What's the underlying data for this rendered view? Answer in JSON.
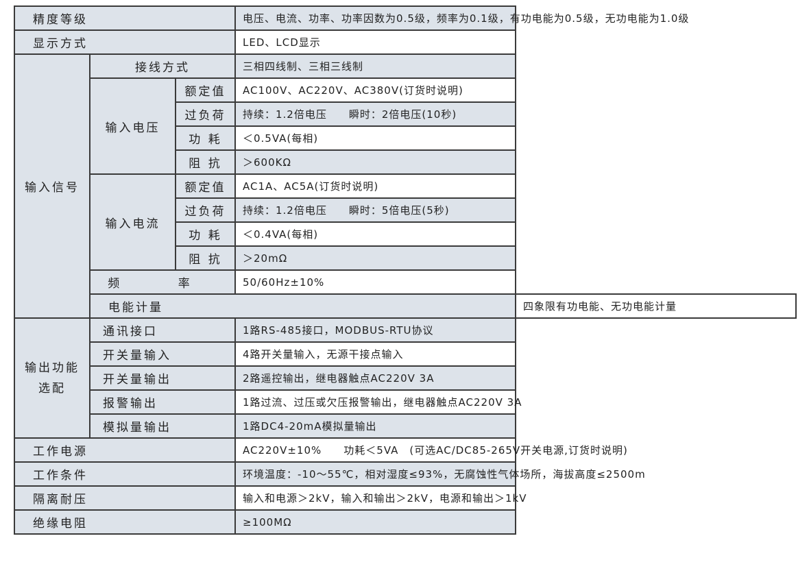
{
  "rows": {
    "accuracy": {
      "label": "精度等级",
      "value": "电压、电流、功率、功率因数为0.5级，频率为0.1级，有功电能为0.5级，无功电能为1.0级"
    },
    "display": {
      "label": "显示方式",
      "value": "LED、LCD显示"
    },
    "input_signal": {
      "label": "输入信号",
      "wiring": {
        "label": "接线方式",
        "value": "三相四线制、三相三线制"
      },
      "voltage": {
        "label": "输入电压",
        "rated": {
          "label": "额定值",
          "value": "AC100V、AC220V、AC380V(订货时说明)"
        },
        "overload": {
          "label": "过负荷",
          "value": "持续：1.2倍电压　　瞬时：2倍电压(10秒)"
        },
        "power": {
          "label": "功 耗",
          "value": "＜0.5VA(每相)"
        },
        "impedance": {
          "label": "阻 抗",
          "value": "＞600KΩ"
        }
      },
      "current": {
        "label": "输入电流",
        "rated": {
          "label": "额定值",
          "value": "AC1A、AC5A(订货时说明)"
        },
        "overload": {
          "label": "过负荷",
          "value": "持续：1.2倍电压　　瞬时：5倍电压(5秒)"
        },
        "power": {
          "label": "功 耗",
          "value": "＜0.4VA(每相)"
        },
        "impedance": {
          "label": "阻 抗",
          "value": "＞20mΩ"
        }
      },
      "frequency": {
        "label": "频 率",
        "value": "50/60Hz±10%"
      }
    },
    "energy": {
      "label": "电能计量",
      "value": "四象限有功电能、无功电能计量"
    },
    "output": {
      "label_line1": "输出功能",
      "label_line2": "选配",
      "comm": {
        "label": "通讯接口",
        "value": "1路RS-485接口，MODBUS-RTU协议"
      },
      "di": {
        "label": "开关量输入",
        "value": "4路开关量输入，无源干接点输入"
      },
      "do": {
        "label": "开关量输出",
        "value": "2路遥控输出，继电器触点AC220V 3A"
      },
      "alarm": {
        "label": "报警输出",
        "value": "1路过流、过压或欠压报警输出，继电器触点AC220V 3A"
      },
      "analog": {
        "label": "模拟量输出",
        "value": "1路DC4-20mA模拟量输出"
      }
    },
    "power_supply": {
      "label": "工作电源",
      "value": "AC220V±10%　　功耗＜5VA　(可选AC/DC85-265V开关电源,订货时说明)"
    },
    "conditions": {
      "label": "工作条件",
      "value": "环境温度：-10～55℃，相对湿度≤93%，无腐蚀性气体场所，海拔高度≤2500m"
    },
    "isolation": {
      "label": "隔离耐压",
      "value": "输入和电源＞2kV，输入和输出＞2kV，电源和输出＞1kV"
    },
    "insulation": {
      "label": "绝缘电阻",
      "value": "≥100MΩ"
    }
  },
  "colors": {
    "shade": "#dde3ea",
    "border": "#3a3a3a"
  }
}
